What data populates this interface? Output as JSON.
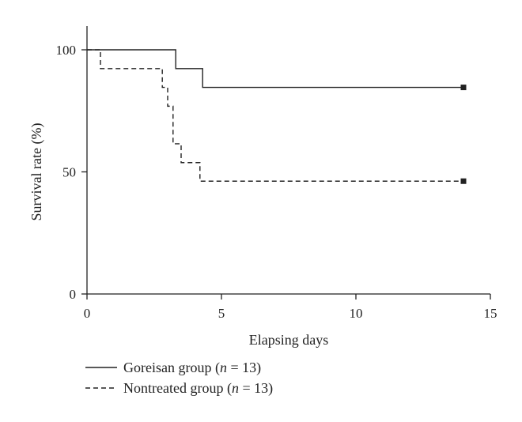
{
  "chart_data": {
    "type": "line",
    "style": "step",
    "xlabel": "Elapsing days",
    "ylabel": "Survival rate (%)",
    "xlim": [
      0,
      15
    ],
    "ylim": [
      0,
      100
    ],
    "xticks": [
      0,
      5,
      10,
      15
    ],
    "yticks": [
      0,
      50,
      100
    ],
    "grid": false,
    "legend_position": "bottom-left",
    "series": [
      {
        "name_prefix": "Goreisan group (",
        "name_var": "n",
        "name_suffix": " = 13)",
        "line_style": "solid",
        "color": "#222222",
        "x": [
          0,
          3.3,
          4.3,
          14
        ],
        "y": [
          100,
          92.3,
          84.6,
          84.6
        ],
        "censor_marker_at_end": true
      },
      {
        "name_prefix": "Nontreated group (",
        "name_var": "n",
        "name_suffix": " = 13)",
        "line_style": "dashed",
        "color": "#222222",
        "x": [
          0,
          0.5,
          2.8,
          3.0,
          3.2,
          3.5,
          4.2,
          14
        ],
        "y": [
          100,
          92.3,
          84.6,
          76.9,
          61.5,
          53.8,
          46.2,
          46.2
        ],
        "censor_marker_at_end": true
      }
    ]
  }
}
